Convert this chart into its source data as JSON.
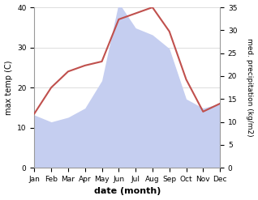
{
  "months": [
    "Jan",
    "Feb",
    "Mar",
    "Apr",
    "May",
    "Jun",
    "Jul",
    "Aug",
    "Sep",
    "Oct",
    "Nov",
    "Dec"
  ],
  "temp": [
    13.5,
    20.0,
    24.0,
    25.5,
    26.5,
    37.0,
    38.5,
    40.0,
    34.0,
    22.0,
    14.0,
    16.0
  ],
  "precip": [
    11.5,
    10.0,
    11.0,
    13.0,
    19.0,
    36.0,
    30.5,
    29.0,
    26.0,
    15.0,
    13.0,
    14.0
  ],
  "temp_color": "#c0504d",
  "precip_fill_color": "#c5cef0",
  "temp_ylim": [
    0,
    40
  ],
  "precip_ylim": [
    0,
    35
  ],
  "temp_yticks": [
    0,
    10,
    20,
    30,
    40
  ],
  "precip_yticks": [
    0,
    5,
    10,
    15,
    20,
    25,
    30,
    35
  ],
  "xlabel": "date (month)",
  "ylabel_left": "max temp (C)",
  "ylabel_right": "med. precipitation (kg/m2)",
  "bg_color": "#ffffff",
  "label_fontsize": 7,
  "tick_fontsize": 6.5,
  "xlabel_fontsize": 8
}
